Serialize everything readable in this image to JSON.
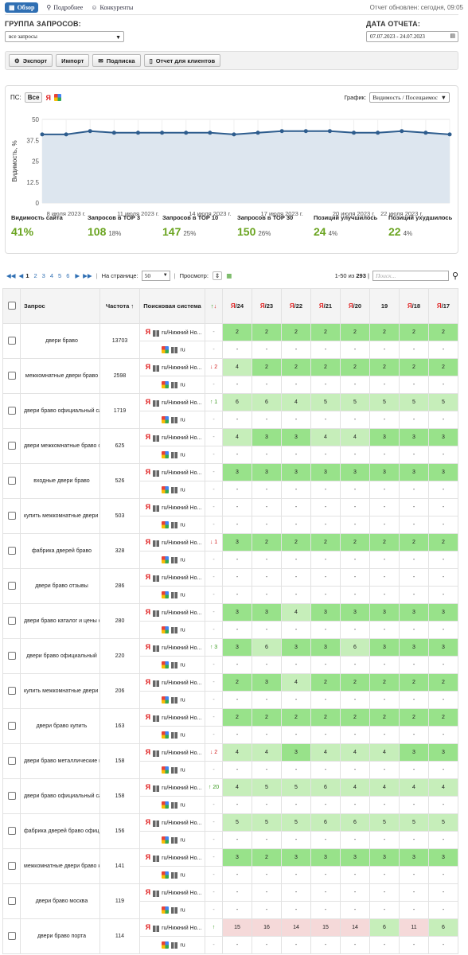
{
  "nav": {
    "tabs": [
      "Обзор",
      "Подробнее",
      "Конкуренты"
    ],
    "updated": "Отчет обновлен: сегодня, 09:05"
  },
  "group": {
    "label": "ГРУППА ЗАПРОСОВ:",
    "value": "все запросы"
  },
  "date": {
    "label": "ДАТА ОТЧЕТА:",
    "value": "07.07.2023 - 24.07.2023"
  },
  "toolbar": {
    "export": "Экспорт",
    "import": "Импорт",
    "subscribe": "Подписка",
    "clients": "Отчет для клиентов"
  },
  "chart_panel": {
    "ps_label": "ПС:",
    "ps_all": "Все",
    "graph_label": "График:",
    "graph_value": "Видимость / Посещаемос"
  },
  "chart_data": {
    "type": "line",
    "title": "",
    "ylabel": "Видимость, %",
    "ylim": [
      0,
      50
    ],
    "yticks": [
      "50",
      "37.5",
      "25",
      "12.5",
      "0"
    ],
    "xticks": [
      "8 июля 2023 г.",
      "11 июля 2023 г.",
      "14 июля 2023 г.",
      "17 июля 2023 г.",
      "20 июля 2023 г.",
      "22 июля 2023 г."
    ],
    "x": [
      "07.07",
      "08.07",
      "09.07",
      "10.07",
      "11.07",
      "12.07",
      "13.07",
      "14.07",
      "15.07",
      "16.07",
      "17.07",
      "18.07",
      "19.07",
      "20.07",
      "21.07",
      "22.07",
      "23.07",
      "24.07"
    ],
    "values": [
      41,
      41,
      43,
      42,
      42,
      42,
      42,
      42,
      41,
      42,
      43,
      43,
      43,
      42,
      42,
      43,
      42,
      41
    ],
    "grid": true,
    "legend": "none",
    "color": "#2e5d8e",
    "fill": "#dde6ef"
  },
  "stats": [
    {
      "title": "Видимость сайта",
      "value": "41%",
      "pct": ""
    },
    {
      "title": "Запросов в TOP 3",
      "value": "108",
      "pct": "18%"
    },
    {
      "title": "Запросов в TOP 10",
      "value": "147",
      "pct": "25%"
    },
    {
      "title": "Запросов в TOP 30",
      "value": "150",
      "pct": "26%"
    },
    {
      "title": "Позиций улучшилось",
      "value": "24",
      "pct": "4%"
    },
    {
      "title": "Позиций ухудшилось",
      "value": "22",
      "pct": "4%"
    }
  ],
  "pager": {
    "pages": [
      "1",
      "2",
      "3",
      "4",
      "5",
      "6"
    ],
    "per_page_label": "На странице:",
    "per_page": "50",
    "view_label": "Просмотр:",
    "range": "1-50 из ",
    "total": "293",
    "search_placeholder": "Поиск..."
  },
  "table": {
    "headers": {
      "query": "Запрос",
      "freq": "Частота",
      "engine": "Поисковая система"
    },
    "dates": [
      "24",
      "23",
      "22",
      "21",
      "20",
      "19",
      "18",
      "17"
    ],
    "date_ya": [
      true,
      true,
      true,
      true,
      true,
      false,
      true,
      true
    ],
    "engine_ya": "ru/Нижний Но...",
    "engine_g": "ru",
    "rows": [
      {
        "q": "двери браво",
        "f": "13703",
        "ch": "-",
        "cs": "neu",
        "p": [
          "2",
          "2",
          "2",
          "2",
          "2",
          "2",
          "2",
          "2"
        ]
      },
      {
        "q": "межкомнатные двери браво",
        "f": "2598",
        "ch": "↓ 2",
        "cs": "down",
        "p": [
          "4",
          "2",
          "2",
          "2",
          "2",
          "2",
          "2",
          "2"
        ]
      },
      {
        "q": "двери браво официальный сайт",
        "f": "1719",
        "ch": "↑ 1",
        "cs": "up",
        "p": [
          "6",
          "6",
          "4",
          "5",
          "5",
          "5",
          "5",
          "5"
        ]
      },
      {
        "q": "двери межкомнатные браво официальный сайт",
        "f": "625",
        "ch": "-",
        "cs": "neu",
        "p": [
          "4",
          "3",
          "3",
          "4",
          "4",
          "3",
          "3",
          "3"
        ]
      },
      {
        "q": "входные двери браво",
        "f": "526",
        "ch": "-",
        "cs": "neu",
        "p": [
          "3",
          "3",
          "3",
          "3",
          "3",
          "3",
          "3",
          "3"
        ]
      },
      {
        "q": "купить межкомнатные двери браво в москве",
        "f": "503",
        "ch": "-",
        "cs": "neu",
        "p": [
          "-",
          "-",
          "-",
          "-",
          "-",
          "-",
          "-",
          "-"
        ]
      },
      {
        "q": "фабрика дверей браво",
        "f": "328",
        "ch": "↓ 1",
        "cs": "down",
        "p": [
          "3",
          "2",
          "2",
          "2",
          "2",
          "2",
          "2",
          "2"
        ]
      },
      {
        "q": "двери браво отзывы",
        "f": "286",
        "ch": "-",
        "cs": "neu",
        "p": [
          "-",
          "-",
          "-",
          "-",
          "-",
          "-",
          "-",
          "-"
        ]
      },
      {
        "q": "двери браво каталог и цены официальный сайт",
        "f": "280",
        "ch": "-",
        "cs": "neu",
        "p": [
          "3",
          "3",
          "4",
          "3",
          "3",
          "3",
          "3",
          "3"
        ]
      },
      {
        "q": "двери браво официальный",
        "f": "220",
        "ch": "↑ 3",
        "cs": "up",
        "p": [
          "3",
          "6",
          "3",
          "3",
          "6",
          "3",
          "3",
          "3"
        ]
      },
      {
        "q": "купить межкомнатные двери браво",
        "f": "206",
        "ch": "-",
        "cs": "neu",
        "p": [
          "2",
          "3",
          "4",
          "2",
          "2",
          "2",
          "2",
          "2"
        ]
      },
      {
        "q": "двери браво купить",
        "f": "163",
        "ch": "-",
        "cs": "neu",
        "p": [
          "2",
          "2",
          "2",
          "2",
          "2",
          "2",
          "2",
          "2"
        ]
      },
      {
        "q": "двери браво металлические входные",
        "f": "158",
        "ch": "↓ 2",
        "cs": "down",
        "p": [
          "4",
          "4",
          "3",
          "4",
          "4",
          "4",
          "3",
          "3"
        ]
      },
      {
        "q": "двери браво официальный сайт каталог",
        "f": "158",
        "ch": "↑ 20",
        "cs": "up",
        "p": [
          "4",
          "5",
          "5",
          "6",
          "4",
          "4",
          "4",
          "4"
        ]
      },
      {
        "q": "фабрика дверей браво официальный сайт",
        "f": "156",
        "ch": "-",
        "cs": "neu",
        "p": [
          "5",
          "5",
          "5",
          "6",
          "6",
          "5",
          "5",
          "5"
        ]
      },
      {
        "q": "межкомнатные двери браво каталог",
        "f": "141",
        "ch": "-",
        "cs": "neu",
        "p": [
          "3",
          "2",
          "3",
          "3",
          "3",
          "3",
          "3",
          "3"
        ]
      },
      {
        "q": "двери браво москва",
        "f": "119",
        "ch": "-",
        "cs": "neu",
        "p": [
          "-",
          "-",
          "-",
          "-",
          "-",
          "-",
          "-",
          "-"
        ]
      },
      {
        "q": "двери браво порта",
        "f": "114",
        "ch": "↑",
        "cs": "up",
        "p": [
          "15",
          "16",
          "14",
          "15",
          "14",
          "6",
          "11",
          "6"
        ]
      }
    ]
  }
}
